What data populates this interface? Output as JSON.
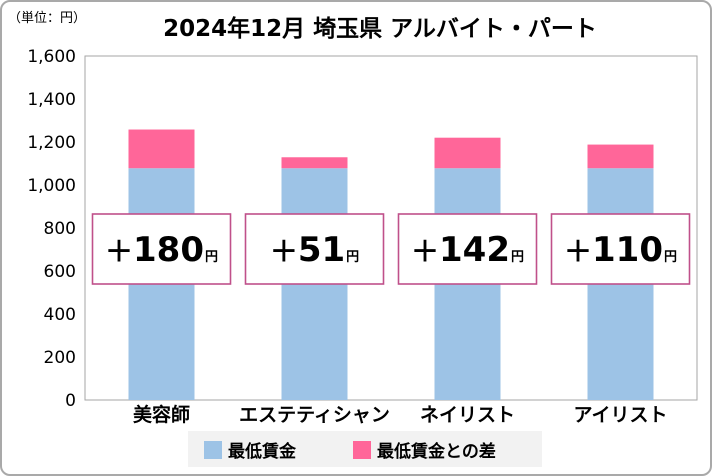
{
  "unit_label": "（単位：円）",
  "chart_data": {
    "type": "bar",
    "stacked": true,
    "title": "2024年12月 埼玉県 アルバイト・パート",
    "categories": [
      "美容師",
      "エステティシャン",
      "ネイリスト",
      "アイリスト"
    ],
    "series": [
      {
        "name": "最低賃金",
        "color": "#9dc3e6",
        "values": [
          1078,
          1078,
          1078,
          1078
        ]
      },
      {
        "name": "最低賃金との差",
        "color": "#ff6699",
        "values": [
          180,
          51,
          142,
          110
        ]
      }
    ],
    "annotations": [
      {
        "plus": "＋",
        "value": "180",
        "unit": "円"
      },
      {
        "plus": "＋",
        "value": "51",
        "unit": "円"
      },
      {
        "plus": "＋",
        "value": "142",
        "unit": "円"
      },
      {
        "plus": "＋",
        "value": "110",
        "unit": "円"
      }
    ],
    "ylim": [
      0,
      1600
    ],
    "yticks": [
      "0",
      "200",
      "400",
      "600",
      "800",
      "1,000",
      "1,200",
      "1,400",
      "1,600"
    ],
    "ytick_values": [
      0,
      200,
      400,
      600,
      800,
      1000,
      1200,
      1400,
      1600
    ],
    "grid": false,
    "legend_position": "bottom",
    "annotation_border_color": "#c0508a"
  }
}
